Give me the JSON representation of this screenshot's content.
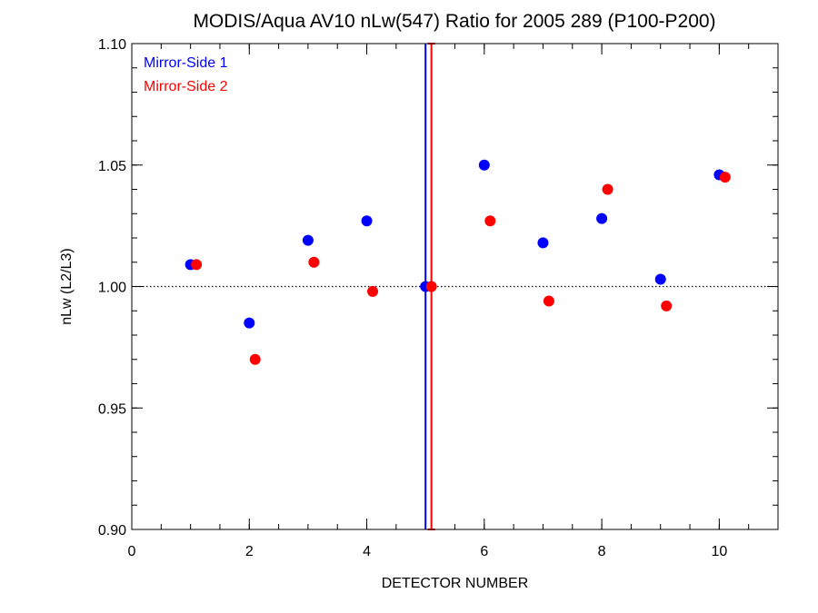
{
  "chart_data": {
    "type": "scatter",
    "title": "MODIS/Aqua AV10 nLw(547) Ratio for 2005 289 (P100-P200)",
    "xlabel": "DETECTOR NUMBER",
    "ylabel": "nLw (L2/L3)",
    "xlim": [
      0,
      11
    ],
    "ylim": [
      0.9,
      1.1
    ],
    "x_ticks": [
      0,
      2,
      4,
      6,
      8,
      10
    ],
    "x_tick_labels": [
      "0",
      "2",
      "4",
      "6",
      "8",
      "10"
    ],
    "x_minor_step": 0.5,
    "y_ticks": [
      0.9,
      0.95,
      1.0,
      1.05,
      1.1
    ],
    "y_tick_labels": [
      "0.90",
      "0.95",
      "1.00",
      "1.05",
      "1.10"
    ],
    "y_minor_step": 0.01,
    "reference_line_y": 1.0,
    "legend_position": "top-left",
    "series": [
      {
        "name": "Mirror-Side 1",
        "color": "#0000ff",
        "x": [
          1,
          2,
          3,
          4,
          5,
          6,
          7,
          8,
          9,
          10
        ],
        "y": [
          1.009,
          0.985,
          1.019,
          1.027,
          1.0,
          1.05,
          1.018,
          1.028,
          1.003,
          1.046
        ],
        "error_bar": {
          "x": 5,
          "low": 0.9,
          "high": 1.1,
          "capped": false
        }
      },
      {
        "name": "Mirror-Side 2",
        "color": "#ff0000",
        "x": [
          1.1,
          2.1,
          3.1,
          4.1,
          5.1,
          6.1,
          7.1,
          8.1,
          9.1,
          10.1
        ],
        "y": [
          1.009,
          0.97,
          1.01,
          0.998,
          1.0,
          1.027,
          0.994,
          1.04,
          0.992,
          1.045
        ],
        "error_bar": {
          "x": 5.1,
          "low": 0.9,
          "high": 1.1,
          "capped": true
        }
      }
    ]
  }
}
